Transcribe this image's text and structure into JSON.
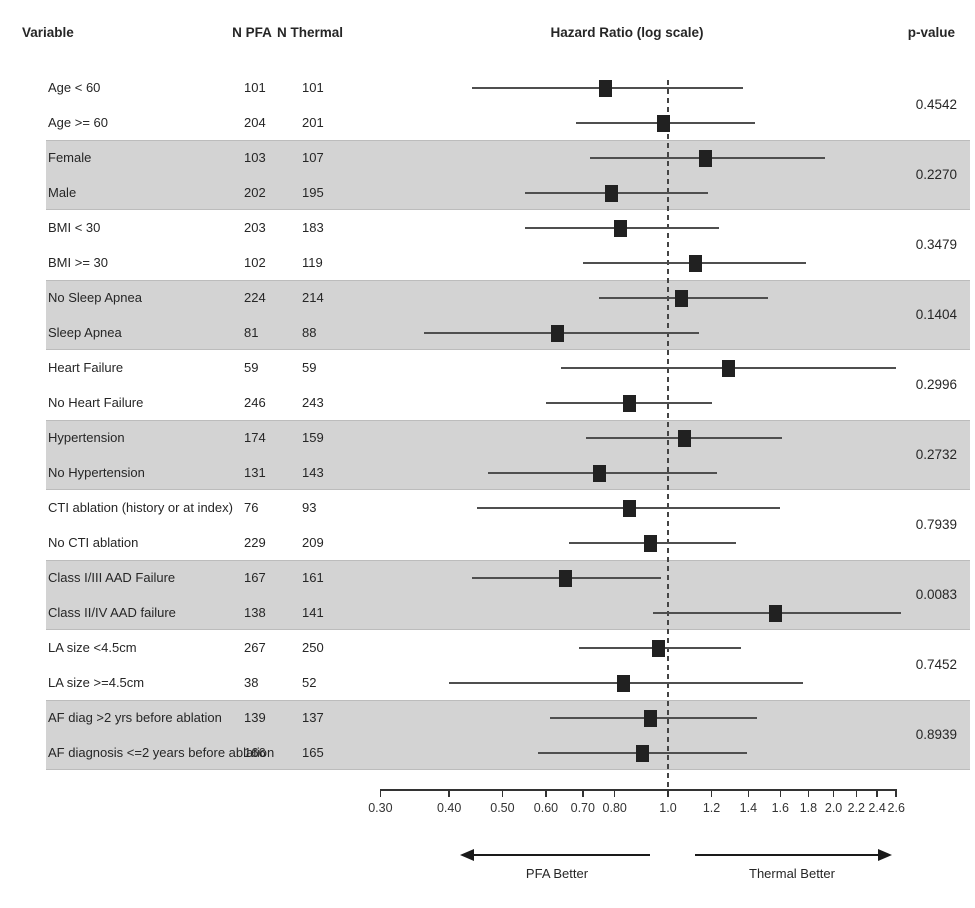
{
  "header": {
    "variable": "Variable",
    "n_pfa": "N PFA",
    "n_thermal": "N Thermal",
    "hazard_ratio": "Hazard Ratio (log scale)",
    "p_value": "p-value"
  },
  "footer": {
    "left_label": "PFA Better",
    "right_label": "Thermal Better"
  },
  "colors": {
    "background": "#ffffff",
    "band": "#d3d3d3",
    "band_edge": "#bcbcbc",
    "marker": "#212121",
    "ci_line": "#4f4f4f",
    "reference_line": "#444444",
    "axis": "#333333",
    "text": "#262626"
  },
  "chart_data": {
    "type": "scatter",
    "subtype": "forest-plot",
    "title": "Hazard Ratio (log scale)",
    "x_scale": "log",
    "xlim": [
      0.3,
      2.6
    ],
    "reference_line": 1.0,
    "x_ticks": [
      0.3,
      0.4,
      0.5,
      0.6,
      0.7,
      0.8,
      1.0,
      1.2,
      1.4,
      1.6,
      1.8,
      2.0,
      2.2,
      2.4,
      2.6
    ],
    "x_tick_labels": [
      "0.30",
      "0.40",
      "0.50",
      "0.60",
      "0.70",
      "0.80",
      "1.0",
      "1.2",
      "1.4",
      "1.6",
      "1.8",
      "2.0",
      "2.2",
      "2.4",
      "2.6"
    ],
    "direction_labels": {
      "left": "PFA Better",
      "right": "Thermal Better"
    },
    "groups": [
      {
        "p_value": "0.4542",
        "shaded": false,
        "rows": [
          {
            "label": "Age < 60",
            "n_pfa": "101",
            "n_thermal": "101",
            "hr": 0.77,
            "ci_low": 0.44,
            "ci_high": 1.37
          },
          {
            "label": "Age >= 60",
            "n_pfa": "204",
            "n_thermal": "201",
            "hr": 0.98,
            "ci_low": 0.68,
            "ci_high": 1.44
          }
        ]
      },
      {
        "p_value": "0.2270",
        "shaded": true,
        "rows": [
          {
            "label": "Female",
            "n_pfa": "103",
            "n_thermal": "107",
            "hr": 1.17,
            "ci_low": 0.72,
            "ci_high": 1.93
          },
          {
            "label": "Male",
            "n_pfa": "202",
            "n_thermal": "195",
            "hr": 0.79,
            "ci_low": 0.55,
            "ci_high": 1.18
          }
        ]
      },
      {
        "p_value": "0.3479",
        "shaded": false,
        "rows": [
          {
            "label": "BMI < 30",
            "n_pfa": "203",
            "n_thermal": "183",
            "hr": 0.82,
            "ci_low": 0.55,
            "ci_high": 1.24
          },
          {
            "label": "BMI >= 30",
            "n_pfa": "102",
            "n_thermal": "119",
            "hr": 1.12,
            "ci_low": 0.7,
            "ci_high": 1.78
          }
        ]
      },
      {
        "p_value": "0.1404",
        "shaded": true,
        "rows": [
          {
            "label": "No Sleep Apnea",
            "n_pfa": "224",
            "n_thermal": "214",
            "hr": 1.06,
            "ci_low": 0.75,
            "ci_high": 1.52
          },
          {
            "label": "Sleep Apnea",
            "n_pfa": "81",
            "n_thermal": "88",
            "hr": 0.63,
            "ci_low": 0.36,
            "ci_high": 1.14
          }
        ]
      },
      {
        "p_value": "0.2996",
        "shaded": false,
        "rows": [
          {
            "label": "Heart Failure",
            "n_pfa": "59",
            "n_thermal": "59",
            "hr": 1.29,
            "ci_low": 0.64,
            "ci_high": 2.6
          },
          {
            "label": "No Heart Failure",
            "n_pfa": "246",
            "n_thermal": "243",
            "hr": 0.85,
            "ci_low": 0.6,
            "ci_high": 1.2
          }
        ]
      },
      {
        "p_value": "0.2732",
        "shaded": true,
        "rows": [
          {
            "label": "Hypertension",
            "n_pfa": "174",
            "n_thermal": "159",
            "hr": 1.07,
            "ci_low": 0.71,
            "ci_high": 1.61
          },
          {
            "label": "No Hypertension",
            "n_pfa": "131",
            "n_thermal": "143",
            "hr": 0.75,
            "ci_low": 0.47,
            "ci_high": 1.23
          }
        ]
      },
      {
        "p_value": "0.7939",
        "shaded": false,
        "rows": [
          {
            "label": "CTI ablation (history or at index)",
            "n_pfa": "76",
            "n_thermal": "93",
            "hr": 0.85,
            "ci_low": 0.45,
            "ci_high": 1.6
          },
          {
            "label": "No CTI ablation",
            "n_pfa": "229",
            "n_thermal": "209",
            "hr": 0.93,
            "ci_low": 0.66,
            "ci_high": 1.33
          }
        ]
      },
      {
        "p_value": "0.0083",
        "shaded": true,
        "rows": [
          {
            "label": "Class I/III AAD Failure",
            "n_pfa": "167",
            "n_thermal": "161",
            "hr": 0.65,
            "ci_low": 0.44,
            "ci_high": 0.97
          },
          {
            "label": "Class II/IV AAD failure",
            "n_pfa": "138",
            "n_thermal": "141",
            "hr": 1.57,
            "ci_low": 0.94,
            "ci_high": 2.65
          }
        ]
      },
      {
        "p_value": "0.7452",
        "shaded": false,
        "rows": [
          {
            "label": "LA size <4.5cm",
            "n_pfa": "267",
            "n_thermal": "250",
            "hr": 0.96,
            "ci_low": 0.69,
            "ci_high": 1.36
          },
          {
            "label": "LA size >=4.5cm",
            "n_pfa": "38",
            "n_thermal": "52",
            "hr": 0.83,
            "ci_low": 0.4,
            "ci_high": 1.76
          }
        ]
      },
      {
        "p_value": "0.8939",
        "shaded": true,
        "rows": [
          {
            "label": "AF diag >2 yrs before ablation",
            "n_pfa": "139",
            "n_thermal": "137",
            "hr": 0.93,
            "ci_low": 0.61,
            "ci_high": 1.45
          },
          {
            "label": "AF diagnosis <=2 years before ablation",
            "n_pfa": "166",
            "n_thermal": "165",
            "hr": 0.9,
            "ci_low": 0.58,
            "ci_high": 1.39
          }
        ]
      }
    ]
  }
}
